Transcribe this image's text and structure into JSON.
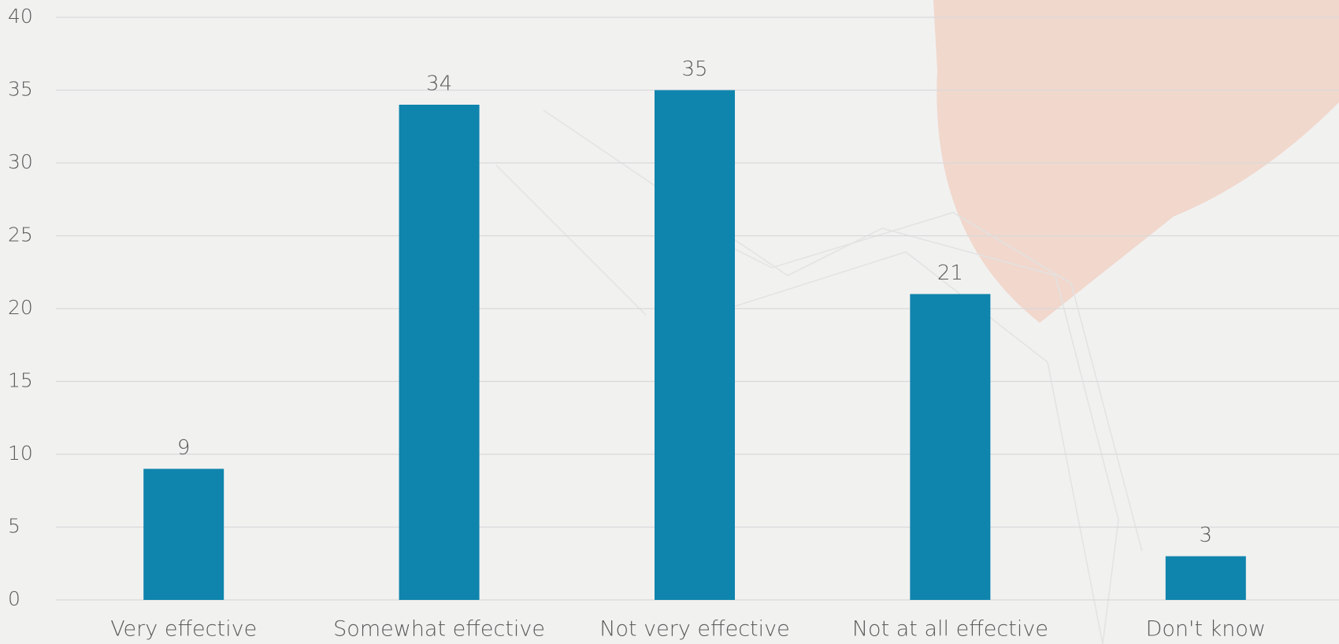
{
  "chart_data": {
    "type": "bar",
    "categories": [
      "Very effective",
      "Somewhat effective",
      "Not very effective",
      "Not at all effective",
      "Don't know"
    ],
    "values": [
      9,
      34,
      35,
      21,
      3
    ],
    "color": "#0f84ad",
    "ylim": [
      0,
      40
    ],
    "yticks": [
      0,
      5,
      10,
      15,
      20,
      25,
      30,
      35,
      40
    ],
    "grid": true
  }
}
